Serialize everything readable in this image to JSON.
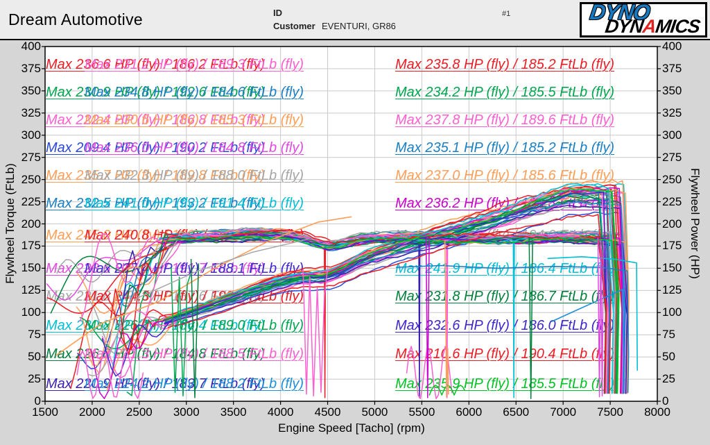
{
  "header": {
    "title": "Dream Automotive",
    "id_label": "ID",
    "customer_label": "Customer",
    "customer_value": "EVENTURI, GR86",
    "page_number": "#1",
    "logo": {
      "line1": "DYNO",
      "line2_pre": "DYN",
      "line2_a": "A",
      "line2_post": "MICS"
    }
  },
  "chart_data": {
    "type": "line",
    "title": "",
    "xlabel": "Engine Speed [Tacho] (rpm)",
    "ylabel_left": "Flywheel Torque (FtLb)",
    "ylabel_right": "Flywheel Power (HP)",
    "x_axis": {
      "min": 1500,
      "max": 8000,
      "step": 500
    },
    "y_axis": {
      "min": 0,
      "max": 400,
      "step": 25
    },
    "grid": true,
    "legend_position": "none",
    "description": "Dyno Dynamics overlay of many dyno runs: each run draws a power curve (HP, right axis) rising to a peak near 7000-7200 rpm then cutting off vertically near 7400-7700 rpm, and a torque curve (FtLb, left axis) holding roughly 175-195 FtLb from 3000-7400 rpm, with chaotic low-rpm traces below 3000 rpm.",
    "annotations_left": [
      {
        "texts": [
          {
            "text": "Max 236.6 HP (fly) / 186.2 FtLb (fly)",
            "color": "#ed1c24"
          },
          {
            "text": "Max 231.2 HP (fly) / 189.3 FtLb (fly)",
            "color": "#ff5fd0"
          }
        ]
      },
      {
        "texts": [
          {
            "text": "Max 230.9 HP (fly) / 192.6 FtLb (fly)",
            "color": "#00a650"
          },
          {
            "text": "Max 234.8 HP (fly) / 184.6 FtLb (fly)",
            "color": "#1c7fc4"
          }
        ]
      },
      {
        "texts": [
          {
            "text": "Max 222.4 HP (fly) / 186.8 FtLb (fly)",
            "color": "#ff5fd0"
          },
          {
            "text": "Max 230.6 HP (fly) / 185.3 FtLb (fly)",
            "color": "#ff9e57"
          }
        ]
      },
      {
        "texts": [
          {
            "text": "Max 209.4 HP (fly) / 190.2 FtLb (fly)",
            "color": "#2b49d8"
          },
          {
            "text": "Max 236.0 HP (fly) / 184.8 FtLb (fly)",
            "color": "#e14ae1"
          }
        ]
      },
      {
        "texts": [
          {
            "text": "Max 235.7 HP (fly) / 189.8 FtLb (fly)",
            "color": "#ff9e57"
          },
          {
            "text": "Max 232.3 HP (fly) / 188.0 FtLb (fly)",
            "color": "#a6a6a6"
          }
        ]
      },
      {
        "texts": [
          {
            "text": "Max 232.5 HP (fly) / 193.2 FtLb (fly)",
            "color": "#1c7fc4"
          },
          {
            "text": "Max 241.0 HP (fly) / 191.4 FtLb (fly)",
            "color": "#00bfd6"
          }
        ]
      },
      {
        "texts": [
          {
            "text": "Max 245.0 HP (fly) / 192.3 FtLb (fly)",
            "color": "#ff9e57"
          },
          {
            "text": "Max 240.8 HP (fly) / 188.5 FtLb (fly)",
            "color": "#ed1c24"
          }
        ]
      },
      {
        "texts": [
          {
            "text": "Max 223.6 HP (fly) / 191.7 FtLb (fly)",
            "color": "#e14ae1"
          },
          {
            "text": "Max 227.4 HP (fly) / 188.1 FtLb (fly)",
            "color": "#4128d2"
          }
        ]
      },
      {
        "texts": [
          {
            "text": "Max 221.8 HP (fly) / 187.6 FtLb (fly)",
            "color": "#a6a6a6"
          },
          {
            "text": "Max 244.3 HP (fly) / 192.4 FtLb (fly)",
            "color": "#ed1c24"
          }
        ]
      },
      {
        "texts": [
          {
            "text": "Max 230.8 HP (fly) / 186.4 FtLb (fly)",
            "color": "#00bfd6"
          },
          {
            "text": "Max 226.1 HP (fly) / 189.0 FtLb (fly)",
            "color": "#00a650"
          }
        ]
      },
      {
        "texts": [
          {
            "text": "Max 226.8 HP (fly) / 184.8 FtLb (fly)",
            "color": "#00803c"
          },
          {
            "text": "Max 221.3 HP (fly) / 188.5 FtLb (fly)",
            "color": "#ff5fd0"
          }
        ]
      },
      {
        "texts": [
          {
            "text": "Max 220.9 HP (fly) / 183.7 FtLb (fly)",
            "color": "#3b1fb3"
          },
          {
            "text": "Max 224.2 HP (fly) / 188.2 FtLb (fly)",
            "color": "#1e8fd8"
          }
        ]
      }
    ],
    "annotations_right": [
      {
        "text": "Max 235.8 HP (fly) / 185.2 FtLb (fly)",
        "color": "#ed1c24"
      },
      {
        "text": "Max 234.2 HP (fly) / 185.5 FtLb (fly)",
        "color": "#00a650"
      },
      {
        "text": "Max 237.8 HP (fly) / 189.6 FtLb (fly)",
        "color": "#ff5fd0"
      },
      {
        "text": "Max 235.1 HP (fly) / 185.2 FtLb (fly)",
        "color": "#1c7fc4"
      },
      {
        "text": "Max 237.0 HP (fly) / 185.6 FtLb (fly)",
        "color": "#ff9e57"
      },
      {
        "text": "Max 236.2 HP (fly) / 185.8 FtLb (fly)",
        "color": "#cc00cc"
      },
      {
        "text": "Max 236.4 HP (fly) / 194.0 FtLb (fly)",
        "color": "#a6a6a6"
      },
      {
        "text": "Max 241.9 HP (fly) / 186.4 FtLb (fly)",
        "color": "#00bfd6"
      },
      {
        "text": "Max 231.8 HP (fly) / 186.7 FtLb (fly)",
        "color": "#00803c"
      },
      {
        "text": "Max 232.6 HP (fly) / 186.0 FtLb (fly)",
        "color": "#3c28cc"
      },
      {
        "text": "Max 210.6 HP (fly) / 190.4 FtLb (fly)",
        "color": "#ed1c24"
      },
      {
        "text": "Max 235.9 HP (fly) / 185.5 FtLb (fly)",
        "color": "#00c224"
      }
    ]
  }
}
